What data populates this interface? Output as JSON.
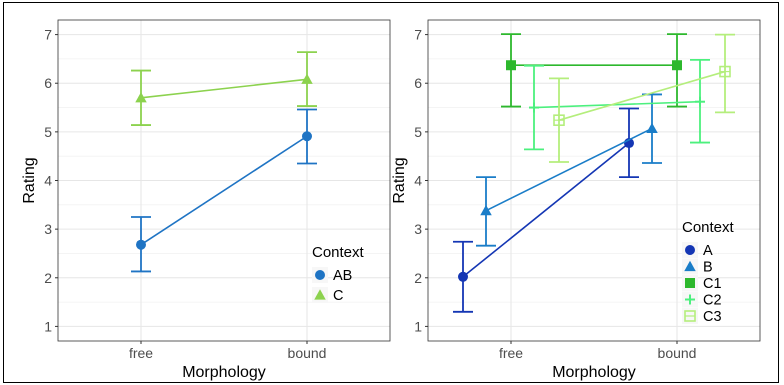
{
  "chart_data": [
    {
      "type": "line",
      "xlabel": "Morphology",
      "ylabel": "Rating",
      "categories": [
        "free",
        "bound"
      ],
      "ylim": [
        0.7,
        7.3
      ],
      "yticks": [
        1,
        2,
        3,
        4,
        5,
        6,
        7
      ],
      "grid": true,
      "error_bars": true,
      "legend": {
        "title": "Context",
        "placement": "bottom-right"
      },
      "series": [
        {
          "name": "AB",
          "color": "#1F74C4",
          "marker": "circle",
          "values": [
            2.68,
            4.91
          ],
          "lower": [
            2.13,
            4.35
          ],
          "upper": [
            3.25,
            5.46
          ]
        },
        {
          "name": "C",
          "color": "#8CD24E",
          "marker": "triangle",
          "values": [
            5.7,
            6.08
          ],
          "lower": [
            5.14,
            5.53
          ],
          "upper": [
            6.26,
            6.64
          ]
        }
      ]
    },
    {
      "type": "line",
      "xlabel": "Morphology",
      "ylabel": "Rating",
      "categories": [
        "free",
        "bound"
      ],
      "ylim": [
        0.7,
        7.3
      ],
      "yticks": [
        1,
        2,
        3,
        4,
        5,
        6,
        7
      ],
      "grid": true,
      "error_bars": true,
      "legend": {
        "title": "Context",
        "placement": "bottom-right"
      },
      "series": [
        {
          "name": "A",
          "color": "#1436B4",
          "marker": "circle",
          "values": [
            2.02,
            4.77
          ],
          "lower": [
            1.3,
            4.07
          ],
          "upper": [
            2.74,
            5.48
          ]
        },
        {
          "name": "B",
          "color": "#1A7DC8",
          "marker": "triangle",
          "values": [
            3.38,
            5.07
          ],
          "lower": [
            2.66,
            4.36
          ],
          "upper": [
            4.07,
            5.77
          ]
        },
        {
          "name": "C1",
          "color": "#2DB82D",
          "marker": "square",
          "values": [
            6.37,
            6.37
          ],
          "lower": [
            5.52,
            5.52
          ],
          "upper": [
            7.01,
            7.01
          ]
        },
        {
          "name": "C2",
          "color": "#4CF07E",
          "marker": "plus",
          "values": [
            5.5,
            5.62
          ],
          "lower": [
            4.64,
            4.78
          ],
          "upper": [
            6.36,
            6.48
          ]
        },
        {
          "name": "C3",
          "color": "#B4EE7C",
          "marker": "square-open",
          "values": [
            5.24,
            6.24
          ],
          "lower": [
            4.38,
            5.4
          ],
          "upper": [
            6.1,
            7.0
          ]
        }
      ]
    }
  ]
}
